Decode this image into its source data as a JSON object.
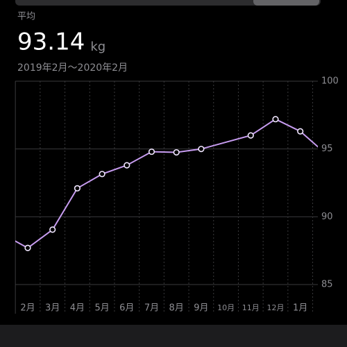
{
  "chart_data": {
    "type": "line",
    "label": "平均",
    "average": "93.14",
    "unit": "kg",
    "date_range": "2019年2月～2020年2月",
    "categories": [
      null,
      "2月",
      "3月",
      "4月",
      "5月",
      "6月",
      "7月",
      "8月",
      "9月",
      "10月",
      "11月",
      "12月",
      "1月",
      null
    ],
    "series": [
      {
        "color": "#c79cf0",
        "values": [
          88.7,
          87.7,
          89.05,
          92.1,
          93.15,
          93.8,
          94.8,
          94.75,
          95.0,
          null,
          96.0,
          97.2,
          96.3,
          94.7
        ]
      }
    ],
    "connect_gaps": true,
    "ylim": [
      85,
      100
    ],
    "yticks": [
      85,
      90,
      95,
      100
    ],
    "grid": true
  }
}
